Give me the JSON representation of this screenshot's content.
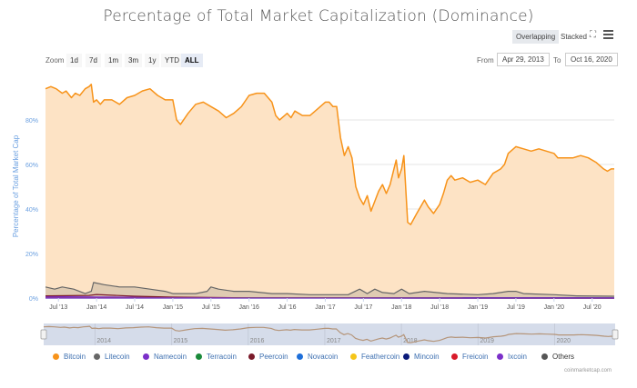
{
  "chart_data": {
    "type": "area",
    "title": "Percentage of Total Market Capitalization (Dominance)",
    "xlabel": "",
    "ylabel": "Percentage of Total Market Cap",
    "ylim": [
      0,
      100
    ],
    "xlim": [
      2013.33,
      2020.79
    ],
    "yticks": [
      "0%",
      "20%",
      "40%",
      "60%",
      "80%"
    ],
    "ytick_values": [
      0,
      20,
      40,
      60,
      80
    ],
    "xticks": [
      "Jul '13",
      "Jan '14",
      "Jul '14",
      "Jan '15",
      "Jul '15",
      "Jan '16",
      "Jul '16",
      "Jan '17",
      "Jul '17",
      "Jan '18",
      "Jul '18",
      "Jan '19",
      "Jul '19",
      "Jan '20",
      "Jul '20"
    ],
    "xtick_values": [
      2013.5,
      2014.0,
      2014.5,
      2015.0,
      2015.5,
      2016.0,
      2016.5,
      2017.0,
      2017.5,
      2018.0,
      2018.5,
      2019.0,
      2019.5,
      2020.0,
      2020.5
    ],
    "grid": true,
    "legend_position": "bottom",
    "series": [
      {
        "name": "Bitcoin",
        "color": "#f7931a",
        "fill": "#fde3c5",
        "points": [
          [
            2013.33,
            94
          ],
          [
            2013.4,
            95
          ],
          [
            2013.47,
            94
          ],
          [
            2013.55,
            92
          ],
          [
            2013.6,
            93
          ],
          [
            2013.67,
            90
          ],
          [
            2013.72,
            92
          ],
          [
            2013.78,
            91
          ],
          [
            2013.85,
            94
          ],
          [
            2013.9,
            95
          ],
          [
            2013.93,
            96
          ],
          [
            2013.96,
            88
          ],
          [
            2014.0,
            89
          ],
          [
            2014.05,
            87
          ],
          [
            2014.1,
            89
          ],
          [
            2014.2,
            89
          ],
          [
            2014.3,
            87
          ],
          [
            2014.4,
            90
          ],
          [
            2014.5,
            91
          ],
          [
            2014.6,
            93
          ],
          [
            2014.7,
            94
          ],
          [
            2014.8,
            91
          ],
          [
            2014.9,
            89
          ],
          [
            2015.0,
            89
          ],
          [
            2015.05,
            80
          ],
          [
            2015.1,
            78
          ],
          [
            2015.2,
            83
          ],
          [
            2015.3,
            87
          ],
          [
            2015.4,
            88
          ],
          [
            2015.5,
            86
          ],
          [
            2015.6,
            84
          ],
          [
            2015.7,
            81
          ],
          [
            2015.8,
            83
          ],
          [
            2015.9,
            86
          ],
          [
            2016.0,
            91
          ],
          [
            2016.1,
            92
          ],
          [
            2016.2,
            92
          ],
          [
            2016.3,
            88
          ],
          [
            2016.35,
            82
          ],
          [
            2016.4,
            80
          ],
          [
            2016.5,
            83
          ],
          [
            2016.55,
            81
          ],
          [
            2016.6,
            84
          ],
          [
            2016.7,
            82
          ],
          [
            2016.8,
            82
          ],
          [
            2016.9,
            85
          ],
          [
            2017.0,
            88
          ],
          [
            2017.05,
            88
          ],
          [
            2017.1,
            86
          ],
          [
            2017.15,
            86
          ],
          [
            2017.2,
            72
          ],
          [
            2017.25,
            64
          ],
          [
            2017.3,
            68
          ],
          [
            2017.35,
            63
          ],
          [
            2017.4,
            50
          ],
          [
            2017.45,
            45
          ],
          [
            2017.5,
            42
          ],
          [
            2017.55,
            46
          ],
          [
            2017.6,
            39
          ],
          [
            2017.7,
            48
          ],
          [
            2017.75,
            51
          ],
          [
            2017.8,
            47
          ],
          [
            2017.85,
            51
          ],
          [
            2017.9,
            58
          ],
          [
            2017.93,
            62
          ],
          [
            2017.96,
            54
          ],
          [
            2018.0,
            58
          ],
          [
            2018.03,
            64
          ],
          [
            2018.08,
            34
          ],
          [
            2018.12,
            33
          ],
          [
            2018.2,
            38
          ],
          [
            2018.3,
            44
          ],
          [
            2018.35,
            41
          ],
          [
            2018.42,
            38
          ],
          [
            2018.5,
            42
          ],
          [
            2018.55,
            47
          ],
          [
            2018.6,
            53
          ],
          [
            2018.65,
            55
          ],
          [
            2018.7,
            53
          ],
          [
            2018.8,
            54
          ],
          [
            2018.9,
            52
          ],
          [
            2019.0,
            53
          ],
          [
            2019.1,
            51
          ],
          [
            2019.2,
            56
          ],
          [
            2019.3,
            58
          ],
          [
            2019.35,
            60
          ],
          [
            2019.4,
            65
          ],
          [
            2019.5,
            68
          ],
          [
            2019.6,
            67
          ],
          [
            2019.7,
            66
          ],
          [
            2019.8,
            67
          ],
          [
            2019.9,
            66
          ],
          [
            2020.0,
            65
          ],
          [
            2020.05,
            63
          ],
          [
            2020.15,
            63
          ],
          [
            2020.25,
            63
          ],
          [
            2020.35,
            64
          ],
          [
            2020.45,
            63
          ],
          [
            2020.55,
            61
          ],
          [
            2020.65,
            58
          ],
          [
            2020.7,
            57
          ],
          [
            2020.75,
            58
          ],
          [
            2020.79,
            58
          ]
        ]
      },
      {
        "name": "Litecoin",
        "color": "#666666",
        "fill": "#d9c7ae",
        "points": [
          [
            2013.33,
            5
          ],
          [
            2013.45,
            4
          ],
          [
            2013.55,
            5
          ],
          [
            2013.7,
            4
          ],
          [
            2013.85,
            2
          ],
          [
            2013.93,
            3
          ],
          [
            2013.96,
            7
          ],
          [
            2014.1,
            6
          ],
          [
            2014.3,
            5
          ],
          [
            2014.5,
            5
          ],
          [
            2014.7,
            4
          ],
          [
            2014.9,
            3
          ],
          [
            2015.0,
            2
          ],
          [
            2015.3,
            2
          ],
          [
            2015.45,
            3
          ],
          [
            2015.5,
            5
          ],
          [
            2015.6,
            4
          ],
          [
            2015.8,
            3
          ],
          [
            2016.0,
            3
          ],
          [
            2016.3,
            2
          ],
          [
            2016.5,
            2
          ],
          [
            2016.8,
            1.5
          ],
          [
            2017.0,
            1.5
          ],
          [
            2017.3,
            1.5
          ],
          [
            2017.45,
            4
          ],
          [
            2017.55,
            2
          ],
          [
            2017.65,
            4
          ],
          [
            2017.75,
            2.5
          ],
          [
            2017.9,
            2
          ],
          [
            2018.0,
            4
          ],
          [
            2018.1,
            2
          ],
          [
            2018.3,
            3
          ],
          [
            2018.6,
            2
          ],
          [
            2019.0,
            1.5
          ],
          [
            2019.2,
            2
          ],
          [
            2019.4,
            3
          ],
          [
            2019.5,
            3
          ],
          [
            2019.6,
            2
          ],
          [
            2020.0,
            1.5
          ],
          [
            2020.3,
            1
          ],
          [
            2020.79,
            0.8
          ]
        ]
      },
      {
        "name": "Namecoin",
        "color": "#7b2fc9",
        "points": [
          [
            2013.33,
            0.6
          ],
          [
            2014.0,
            0.5
          ],
          [
            2015.0,
            0.2
          ],
          [
            2020.79,
            0.1
          ]
        ]
      },
      {
        "name": "Terracoin",
        "color": "#1a8a3a",
        "points": [
          [
            2013.33,
            0.05
          ],
          [
            2020.79,
            0.01
          ]
        ]
      },
      {
        "name": "Peercoin",
        "color": "#7a1a2a",
        "points": [
          [
            2013.33,
            1
          ],
          [
            2013.9,
            1.2
          ],
          [
            2014.0,
            1.6
          ],
          [
            2014.5,
            0.8
          ],
          [
            2015.0,
            0.4
          ],
          [
            2016.0,
            0.1
          ],
          [
            2020.79,
            0.02
          ]
        ]
      },
      {
        "name": "Novacoin",
        "color": "#1e6fd9",
        "points": [
          [
            2013.33,
            0.05
          ],
          [
            2020.79,
            0.01
          ]
        ]
      },
      {
        "name": "Feathercoin",
        "color": "#f5c518",
        "points": [
          [
            2013.33,
            0.1
          ],
          [
            2020.79,
            0.01
          ]
        ]
      },
      {
        "name": "Mincoin",
        "color": "#0b1a7a",
        "points": [
          [
            2013.33,
            0.02
          ],
          [
            2020.79,
            0.01
          ]
        ]
      },
      {
        "name": "Freicoin",
        "color": "#d81a2a",
        "points": [
          [
            2013.33,
            0.05
          ],
          [
            2020.79,
            0.01
          ]
        ]
      },
      {
        "name": "Ixcoin",
        "color": "#7b2fc9",
        "points": [
          [
            2013.33,
            0.05
          ],
          [
            2020.79,
            0.01
          ]
        ]
      },
      {
        "name": "Others",
        "color": "#555555",
        "points": []
      }
    ],
    "navigator": {
      "labels": [
        "2014",
        "2015",
        "2016",
        "2017",
        "2018",
        "2019",
        "2020"
      ],
      "label_values": [
        2014,
        2015,
        2016,
        2017,
        2018,
        2019,
        2020
      ]
    }
  },
  "controls": {
    "modes": [
      "Overlapping",
      "Stacked"
    ],
    "active_mode": "Overlapping",
    "zoom_label": "Zoom",
    "zoom_buttons": [
      "1d",
      "7d",
      "1m",
      "3m",
      "1y",
      "YTD",
      "ALL"
    ],
    "active_zoom": "ALL",
    "from_label": "From",
    "from_value": "Apr 29, 2013",
    "to_label": "To",
    "to_value": "Oct 16, 2020"
  },
  "credit": "coinmarketcap.com",
  "colors": {
    "axis_label": "#6a9fe0",
    "grid": "#e6e6e6",
    "navigator_bg": "#d5dcea"
  }
}
